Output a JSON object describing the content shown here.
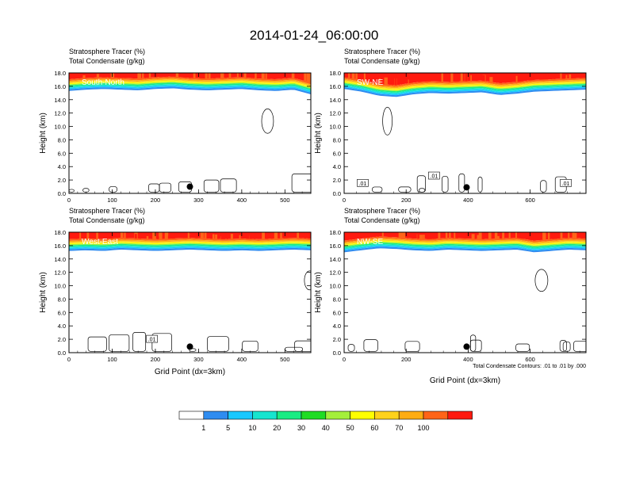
{
  "title": "2014-01-24_06:00:00",
  "palette": {
    "colors": [
      "#ffffff",
      "#2f8cf0",
      "#19c8ff",
      "#16e5cf",
      "#19ec83",
      "#1fdc24",
      "#a4ef3b",
      "#ffff00",
      "#ffd21b",
      "#ffac12",
      "#ff6418",
      "#ff1a0f"
    ],
    "labels": [
      "1",
      "5",
      "10",
      "20",
      "30",
      "40",
      "50",
      "60",
      "70",
      "100"
    ]
  },
  "chart_data": [
    {
      "type": "contour",
      "panel_label": "South-North",
      "subtitle_1": "Stratosphere Tracer   (%)",
      "subtitle_2": "Total Condensate   (g/kg)",
      "ylabel": "Height (km)",
      "xlabel": "",
      "xlim": [
        0,
        560
      ],
      "ylim": [
        0,
        18
      ],
      "xticks": [
        0,
        100,
        200,
        300,
        400,
        500
      ],
      "yticks": [
        0,
        2,
        4,
        6,
        8,
        10,
        12,
        14,
        16,
        18
      ],
      "ytick_labels": [
        "0.0",
        "2.0",
        "4.0",
        "6.0",
        "8.0",
        "10.0",
        "12.0",
        "14.0",
        "16.0",
        "18.0"
      ],
      "tropopause_km": [
        15.3,
        15.5,
        15.6,
        15.5,
        15.4,
        15.6,
        15.7,
        15.5,
        15.4,
        15.5,
        15.6,
        15.4,
        15.3,
        15.5,
        14.8
      ],
      "contour_labels": [],
      "marker": {
        "x": 280,
        "y": 1.0
      }
    },
    {
      "type": "contour",
      "panel_label": "SW-NE",
      "subtitle_1": "Stratosphere Tracer   (%)",
      "subtitle_2": "Total Condensate   (g/kg)",
      "ylabel": "Height (km)",
      "xlabel": "",
      "xlim": [
        0,
        780
      ],
      "ylim": [
        0,
        18
      ],
      "xticks": [
        0,
        200,
        400,
        600
      ],
      "yticks": [
        0,
        2,
        4,
        6,
        8,
        10,
        12,
        14,
        16,
        18
      ],
      "ytick_labels": [
        "0.0",
        "2.0",
        "4.0",
        "6.0",
        "8.0",
        "10.0",
        "12.0",
        "14.0",
        "16.0",
        "18.0"
      ],
      "tropopause_km": [
        15.6,
        15.2,
        14.6,
        14.4,
        14.8,
        15.0,
        14.9,
        15.0,
        15.1,
        14.7,
        14.9,
        15.2,
        15.3,
        15.4,
        15.5
      ],
      "contour_labels": [
        {
          "text": ".01",
          "x": 60,
          "y": 1.5
        },
        {
          "text": ".01",
          "x": 290,
          "y": 2.6
        },
        {
          "text": ".01",
          "x": 715,
          "y": 1.5
        }
      ],
      "marker": {
        "x": 395,
        "y": 0.9
      }
    },
    {
      "type": "contour",
      "panel_label": "West-East",
      "subtitle_1": "Stratosphere Tracer   (%)",
      "subtitle_2": "Total Condensate   (g/kg)",
      "ylabel": "Height (km)",
      "xlabel": "Grid Point (dx=3km)",
      "xlim": [
        0,
        560
      ],
      "ylim": [
        0,
        18
      ],
      "xticks": [
        0,
        100,
        200,
        300,
        400,
        500
      ],
      "yticks": [
        0,
        2,
        4,
        6,
        8,
        10,
        12,
        14,
        16,
        18
      ],
      "ytick_labels": [
        "0.0",
        "2.0",
        "4.0",
        "6.0",
        "8.0",
        "10.0",
        "12.0",
        "14.0",
        "16.0",
        "18.0"
      ],
      "tropopause_km": [
        15.2,
        15.3,
        15.2,
        15.4,
        15.3,
        15.2,
        15.3,
        15.4,
        15.3,
        15.2,
        15.3,
        15.2,
        15.3,
        15.4,
        15.3
      ],
      "contour_labels": [
        {
          "text": ".01",
          "x": 192,
          "y": 2.0
        }
      ],
      "marker": {
        "x": 280,
        "y": 0.9
      }
    },
    {
      "type": "contour",
      "panel_label": "NW-SE",
      "subtitle_1": "Stratosphere Tracer   (%)",
      "subtitle_2": "Total Condensate   (g/kg)",
      "ylabel": "Height (km)",
      "xlabel": "Grid Point (dx=3km)",
      "xlim": [
        0,
        780
      ],
      "ylim": [
        0,
        18
      ],
      "xticks": [
        0,
        200,
        400,
        600
      ],
      "yticks": [
        0,
        2,
        4,
        6,
        8,
        10,
        12,
        14,
        16,
        18
      ],
      "ytick_labels": [
        "0.0",
        "2.0",
        "4.0",
        "6.0",
        "8.0",
        "10.0",
        "12.0",
        "14.0",
        "16.0",
        "18.0"
      ],
      "tropopause_km": [
        15.0,
        15.3,
        15.6,
        15.5,
        15.3,
        15.2,
        15.4,
        15.3,
        15.2,
        15.3,
        15.4,
        15.0,
        15.2,
        15.4,
        15.3
      ],
      "contour_labels": [],
      "marker": {
        "x": 395,
        "y": 0.9
      },
      "footnote": "Total Condensate Contours: .01 to .01 by .000"
    }
  ]
}
